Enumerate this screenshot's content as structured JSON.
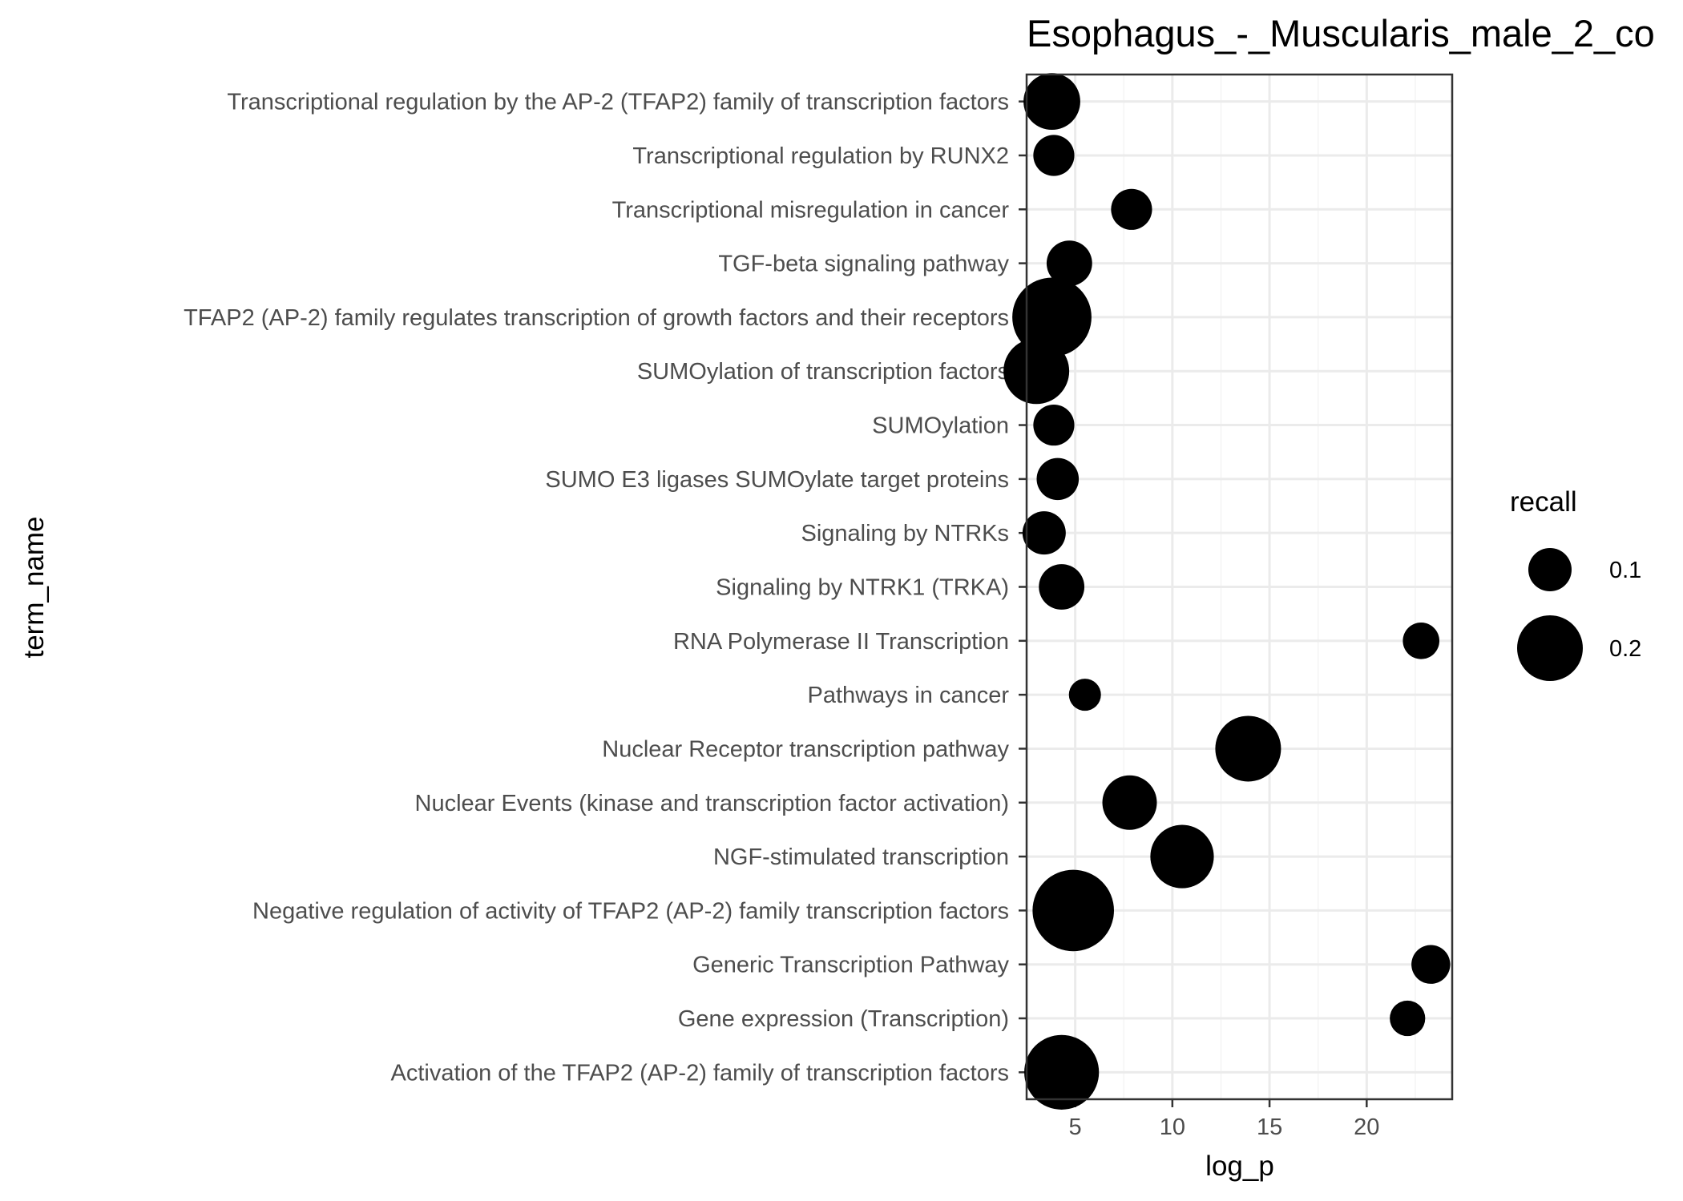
{
  "chart_data": {
    "type": "scatter",
    "title": "Esophagus_-_Muscularis_male_2_co",
    "xlabel": "log_p",
    "ylabel": "term_name",
    "xlim": [
      2.5,
      24.4
    ],
    "x_ticks": [
      5,
      10,
      15,
      20
    ],
    "x_tick_labels": [
      "5",
      "10",
      "15",
      "20"
    ],
    "grid": true,
    "categories": [
      "Activation of the TFAP2 (AP-2) family of transcription factors",
      "Gene expression (Transcription)",
      "Generic Transcription Pathway",
      "Negative regulation of activity of TFAP2 (AP-2) family transcription factors",
      "NGF-stimulated transcription",
      "Nuclear Events (kinase and transcription factor activation)",
      "Nuclear Receptor transcription pathway",
      "Pathways in cancer",
      "RNA Polymerase II Transcription",
      "Signaling by NTRK1 (TRKA)",
      "Signaling by NTRKs",
      "SUMO E3 ligases SUMOylate target proteins",
      "SUMOylation",
      "SUMOylation of transcription factors",
      "TFAP2 (AP-2) family regulates transcription of growth factors and their receptors",
      "TGF-beta signaling pathway",
      "Transcriptional misregulation in cancer",
      "Transcriptional regulation by RUNX2",
      "Transcriptional regulation by the AP-2 (TFAP2) family of transcription factors"
    ],
    "points": [
      {
        "term": "Activation of the TFAP2 (AP-2) family of transcription factors",
        "log_p": 4.3,
        "recall": 0.24
      },
      {
        "term": "Gene expression (Transcription)",
        "log_p": 22.1,
        "recall": 0.065
      },
      {
        "term": "Generic Transcription Pathway",
        "log_p": 23.3,
        "recall": 0.08
      },
      {
        "term": "Negative regulation of activity of TFAP2 (AP-2) family transcription factors",
        "log_p": 4.9,
        "recall": 0.27
      },
      {
        "term": "NGF-stimulated transcription",
        "log_p": 10.5,
        "recall": 0.19
      },
      {
        "term": "Nuclear Events (kinase and transcription factor activation)",
        "log_p": 7.8,
        "recall": 0.15
      },
      {
        "term": "Nuclear Receptor transcription pathway",
        "log_p": 13.9,
        "recall": 0.2
      },
      {
        "term": "Pathways in cancer",
        "log_p": 5.5,
        "recall": 0.05
      },
      {
        "term": "RNA Polymerase II Transcription",
        "log_p": 22.8,
        "recall": 0.07
      },
      {
        "term": "Signaling by NTRK1 (TRKA)",
        "log_p": 4.3,
        "recall": 0.11
      },
      {
        "term": "Signaling by NTRKs",
        "log_p": 3.4,
        "recall": 0.1
      },
      {
        "term": "SUMO E3 ligases SUMOylate target proteins",
        "log_p": 4.1,
        "recall": 0.095
      },
      {
        "term": "SUMOylation",
        "log_p": 3.9,
        "recall": 0.09
      },
      {
        "term": "SUMOylation of transcription factors",
        "log_p": 3.0,
        "recall": 0.2
      },
      {
        "term": "TFAP2 (AP-2) family regulates transcription of growth factors and their receptors",
        "log_p": 3.8,
        "recall": 0.26
      },
      {
        "term": "TGF-beta signaling pathway",
        "log_p": 4.7,
        "recall": 0.11
      },
      {
        "term": "Transcriptional misregulation in cancer",
        "log_p": 7.9,
        "recall": 0.09
      },
      {
        "term": "Transcriptional regulation by RUNX2",
        "log_p": 3.9,
        "recall": 0.09
      },
      {
        "term": "Transcriptional regulation by the AP-2 (TFAP2) family of transcription factors",
        "log_p": 3.8,
        "recall": 0.16
      }
    ],
    "legend": {
      "title": "recall",
      "position": "right",
      "entries": [
        {
          "label": "0.1",
          "recall": 0.1
        },
        {
          "label": "0.2",
          "recall": 0.2
        }
      ]
    },
    "colors": {
      "points": "#000000",
      "panel_border": "#333333",
      "grid_major": "#ebebeb",
      "grid_minor": "#f4f4f4",
      "tick_label": "#4d4d4d",
      "background": "#ffffff"
    }
  }
}
